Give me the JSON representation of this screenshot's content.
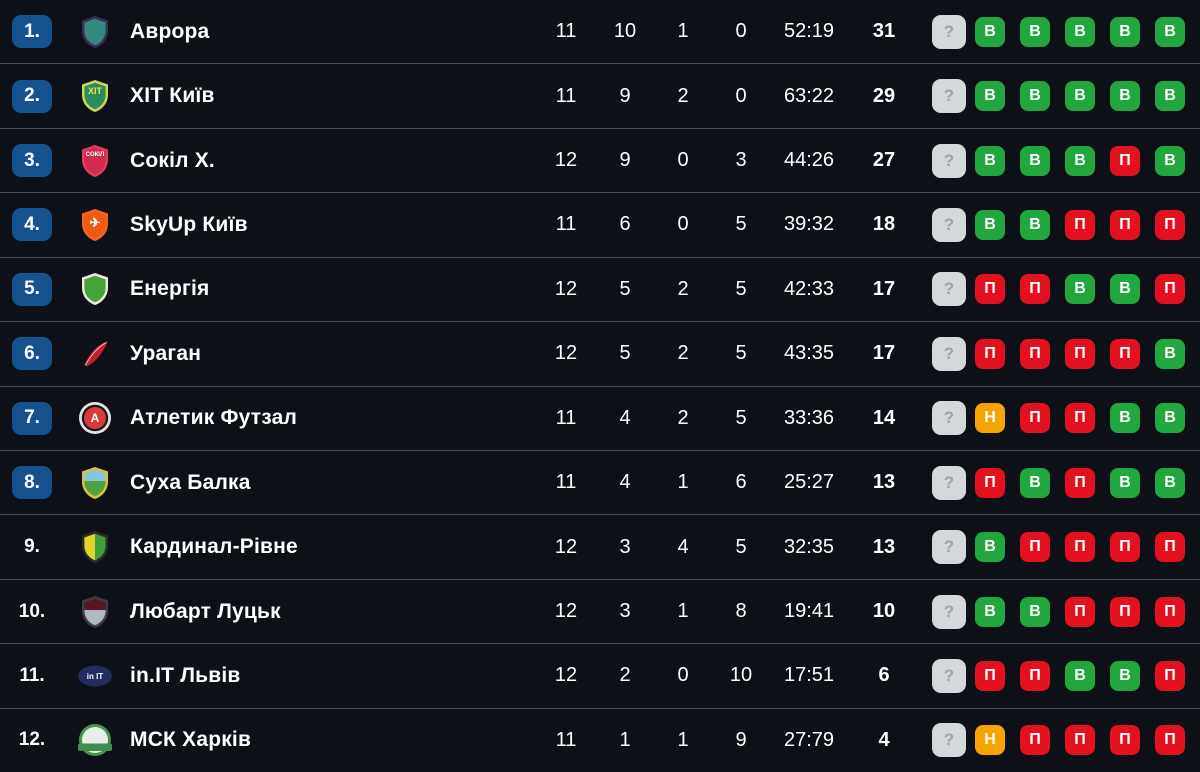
{
  "colors": {
    "background": "#0d1117",
    "separator": "#454c53",
    "rank_badge": "#15528d",
    "win": "#22a73e",
    "loss": "#e3101f",
    "draw": "#f7a301",
    "unknown_bg": "#d4d8db",
    "unknown_fg": "#9aa4ad",
    "text": "#ffffff"
  },
  "form_legend": {
    "U": {
      "label": "?",
      "name": "form-unknown-icon"
    },
    "W": {
      "label": "В",
      "name": "form-win-icon"
    },
    "L": {
      "label": "П",
      "name": "form-loss-icon"
    },
    "D": {
      "label": "Н",
      "name": "form-draw-icon"
    }
  },
  "rows": [
    {
      "rank": "1.",
      "rank_badge": true,
      "team": "Аврора",
      "games": "11",
      "wins": "10",
      "draws": "1",
      "losses": "0",
      "goals": "52:19",
      "points": "31",
      "form": [
        "U",
        "W",
        "W",
        "W",
        "W",
        "W"
      ],
      "logo": {
        "shape": "shield",
        "c1": "#3d2e57",
        "c2": "#338a7d",
        "text": "",
        "tc": ""
      }
    },
    {
      "rank": "2.",
      "rank_badge": true,
      "team": "ХІТ Київ",
      "games": "11",
      "wins": "9",
      "draws": "2",
      "losses": "0",
      "goals": "63:22",
      "points": "29",
      "form": [
        "U",
        "W",
        "W",
        "W",
        "W",
        "W"
      ],
      "logo": {
        "shape": "shield",
        "c1": "#cdd84a",
        "c2": "#2c8a61",
        "text": "ХІТ",
        "tc": "#ffe23a",
        "ts": "9",
        "ty": "16"
      }
    },
    {
      "rank": "3.",
      "rank_badge": true,
      "team": "Сокіл Х.",
      "games": "12",
      "wins": "9",
      "draws": "0",
      "losses": "3",
      "goals": "44:26",
      "points": "27",
      "form": [
        "U",
        "W",
        "W",
        "W",
        "L",
        "W"
      ],
      "logo": {
        "shape": "shield",
        "c1": "#e8395f",
        "c2": "#d02a50",
        "text": "СОКІЛ",
        "tc": "#ffffff",
        "ts": "6",
        "ty": "13"
      }
    },
    {
      "rank": "4.",
      "rank_badge": true,
      "team": "SkyUp Київ",
      "games": "11",
      "wins": "6",
      "draws": "0",
      "losses": "5",
      "goals": "39:32",
      "points": "18",
      "form": [
        "U",
        "W",
        "W",
        "L",
        "L",
        "L"
      ],
      "logo": {
        "shape": "shield",
        "c1": "#f1661f",
        "c2": "#ee5a12",
        "text": "✈",
        "tc": "#ffffff",
        "ts": "13",
        "ty": "20"
      }
    },
    {
      "rank": "5.",
      "rank_badge": true,
      "team": "Енергія",
      "games": "12",
      "wins": "5",
      "draws": "2",
      "losses": "5",
      "goals": "42:33",
      "points": "17",
      "form": [
        "U",
        "L",
        "L",
        "W",
        "W",
        "L"
      ],
      "logo": {
        "shape": "shield",
        "c1": "#ece9e0",
        "c2": "#46a339",
        "text": "",
        "tc": ""
      }
    },
    {
      "rank": "6.",
      "rank_badge": true,
      "team": "Ураган",
      "games": "12",
      "wins": "5",
      "draws": "2",
      "losses": "5",
      "goals": "43:35",
      "points": "17",
      "form": [
        "U",
        "L",
        "L",
        "L",
        "L",
        "W"
      ],
      "logo": {
        "shape": "feather",
        "c1": "#c2202e"
      }
    },
    {
      "rank": "7.",
      "rank_badge": true,
      "team": "Атлетик Футзал",
      "games": "11",
      "wins": "4",
      "draws": "2",
      "losses": "5",
      "goals": "33:36",
      "points": "14",
      "form": [
        "U",
        "D",
        "L",
        "L",
        "W",
        "W"
      ],
      "logo": {
        "shape": "circle3",
        "c1": "#e3e3e3",
        "c2": "#d93a3a",
        "c3": "#15181d",
        "text": "A",
        "tc": "#ffffff",
        "ts": "12",
        "ty": "22"
      }
    },
    {
      "rank": "8.",
      "rank_badge": true,
      "team": "Суха Балка",
      "games": "11",
      "wins": "4",
      "draws": "1",
      "losses": "6",
      "goals": "25:27",
      "points": "13",
      "form": [
        "U",
        "L",
        "W",
        "L",
        "W",
        "W"
      ],
      "logo": {
        "shape": "shield-h",
        "c1": "#d9c43f",
        "c2": "#87c3e0",
        "c3": "#53a044",
        "text": "",
        "tc": ""
      }
    },
    {
      "rank": "9.",
      "rank_badge": false,
      "team": "Кардинал-Рівне",
      "games": "12",
      "wins": "3",
      "draws": "4",
      "losses": "5",
      "goals": "32:35",
      "points": "13",
      "form": [
        "U",
        "W",
        "L",
        "L",
        "L",
        "L"
      ],
      "logo": {
        "shape": "shield-v",
        "c1": "#2a2f25",
        "c2": "#e3d42c",
        "c3": "#3da03a",
        "text": "",
        "tc": ""
      }
    },
    {
      "rank": "10.",
      "rank_badge": false,
      "team": "Любарт Луцьк",
      "games": "12",
      "wins": "3",
      "draws": "1",
      "losses": "8",
      "goals": "19:41",
      "points": "10",
      "form": [
        "U",
        "W",
        "W",
        "L",
        "L",
        "L"
      ],
      "logo": {
        "shape": "shield-h",
        "c1": "#3a3f46",
        "c2": "#571722",
        "c3": "#b3b9c0",
        "text": "",
        "tc": ""
      }
    },
    {
      "rank": "11.",
      "rank_badge": false,
      "team": "in.IT Львів",
      "games": "12",
      "wins": "2",
      "draws": "0",
      "losses": "10",
      "goals": "17:51",
      "points": "6",
      "form": [
        "U",
        "L",
        "L",
        "W",
        "W",
        "L"
      ],
      "logo": {
        "shape": "oval",
        "c1": "#222c5e",
        "text": "in IT",
        "tc": "#ffffff",
        "ts": "8",
        "ty": "21"
      }
    },
    {
      "rank": "12.",
      "rank_badge": false,
      "team": "МСК Харків",
      "games": "11",
      "wins": "1",
      "draws": "1",
      "losses": "9",
      "goals": "27:79",
      "points": "4",
      "form": [
        "U",
        "D",
        "L",
        "L",
        "L",
        "L"
      ],
      "logo": {
        "shape": "circle-banner",
        "c1": "#47934f",
        "c2": "#e9efe6",
        "c3": "#3f8e4f",
        "text": "",
        "tc": ""
      }
    }
  ]
}
